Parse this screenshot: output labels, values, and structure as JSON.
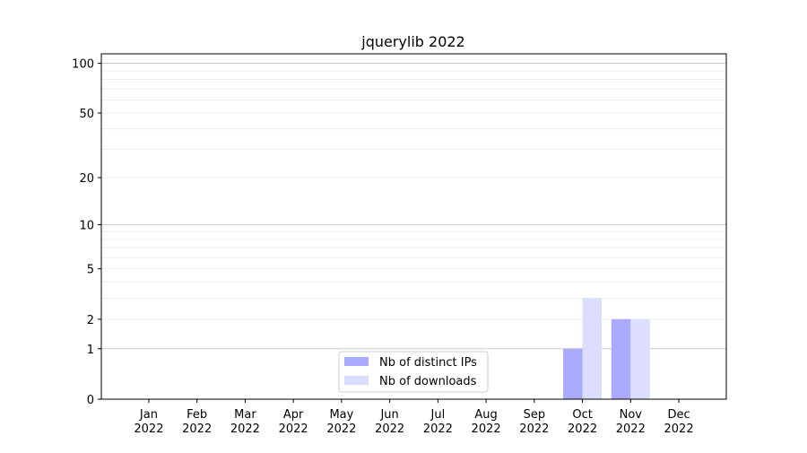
{
  "chart_data": {
    "type": "bar",
    "title": "jquerylib 2022",
    "xlabel": "",
    "ylabel": "",
    "y_scale": "log(1+y)",
    "ylim": [
      0,
      114
    ],
    "yticks": [
      0,
      1,
      2,
      5,
      10,
      20,
      50,
      100
    ],
    "grid": true,
    "legend_position": "lower-center",
    "categories": [
      "Jan\n2022",
      "Feb\n2022",
      "Mar\n2022",
      "Apr\n2022",
      "May\n2022",
      "Jun\n2022",
      "Jul\n2022",
      "Aug\n2022",
      "Sep\n2022",
      "Oct\n2022",
      "Nov\n2022",
      "Dec\n2022"
    ],
    "series": [
      {
        "name": "Nb of distinct IPs",
        "color": "#aaaaff",
        "values": [
          0,
          0,
          0,
          0,
          0,
          0,
          0,
          0,
          0,
          1,
          2,
          0
        ]
      },
      {
        "name": "Nb of downloads",
        "color": "#ddddff",
        "values": [
          0,
          0,
          0,
          0,
          0,
          0,
          0,
          0,
          0,
          3,
          2,
          0
        ]
      }
    ]
  }
}
